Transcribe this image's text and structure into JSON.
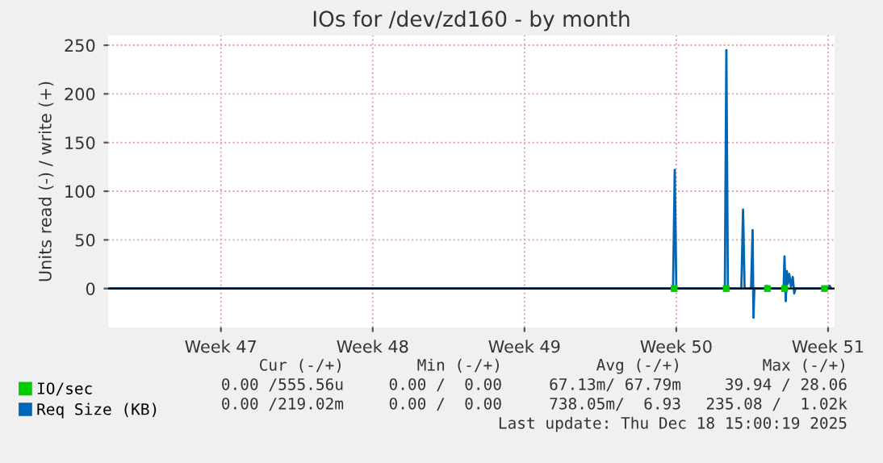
{
  "chart_data": {
    "type": "line",
    "title": "IOs for /dev/zd160 - by month",
    "ylabel": "Units read (-) / write (+)",
    "xlim": [
      "2025-11-11T19:12",
      "2025-12-15T07:12"
    ],
    "xticks": [
      {
        "value": "2025-11-17",
        "label": "Week 47"
      },
      {
        "value": "2025-11-24",
        "label": "Week 48"
      },
      {
        "value": "2025-12-01",
        "label": "Week 49"
      },
      {
        "value": "2025-12-08",
        "label": "Week 50"
      },
      {
        "value": "2025-12-15",
        "label": "Week 51"
      }
    ],
    "ylim": [
      -40,
      260
    ],
    "yticks": [
      0,
      50,
      100,
      150,
      200,
      250
    ],
    "grid": true,
    "legend": "bottom left",
    "line_style": "solid",
    "marker": "none",
    "ref_lines": [
      {
        "axis": "y",
        "value": 0,
        "color": "#000000"
      }
    ],
    "series": [
      {
        "name": "IO/sec",
        "type": "scatter",
        "marker": "square",
        "color": "#00cc00",
        "x": [
          "2025-12-07T21:36",
          "2025-12-10T07:12",
          "2025-12-12T04:48",
          "2025-12-13T00:00",
          "2025-12-14T20:00"
        ],
        "values": [
          0,
          0,
          0,
          0,
          0
        ]
      },
      {
        "name": "Req Size (KB)",
        "color": "#0066b3",
        "x": [
          "2025-11-11T19:12",
          "2025-12-07T20:24",
          "2025-12-07T22:20",
          "2025-12-08T00:00",
          "2025-12-10T05:46",
          "2025-12-10T07:26",
          "2025-12-10T09:07",
          "2025-12-11T00:00",
          "2025-12-11T01:55",
          "2025-12-11T03:36",
          "2025-12-11T10:48",
          "2025-12-11T12:29",
          "2025-12-11T13:26",
          "2025-12-11T14:24",
          "2025-12-12T02:24",
          "2025-12-12T04:05",
          "2025-12-12T05:46",
          "2025-12-12T22:48",
          "2025-12-12T23:46",
          "2025-12-13T01:12",
          "2025-12-13T02:24",
          "2025-12-13T03:36",
          "2025-12-13T05:02",
          "2025-12-13T06:58",
          "2025-12-13T08:53",
          "2025-12-13T10:34",
          "2025-12-13T12:00",
          "2025-12-15T00:00",
          "2025-12-15T01:41",
          "2025-12-15T03:22"
        ],
        "values": [
          0,
          0,
          122,
          0,
          0,
          245,
          0,
          0,
          81,
          0,
          0,
          60,
          -30,
          0,
          0,
          3,
          0,
          0,
          33,
          -13,
          18,
          5,
          15,
          2,
          12,
          -5,
          0,
          0,
          3,
          0
        ]
      }
    ],
    "annotations": [
      "Cur (-/+)",
      "Min (-/+)",
      "Avg (-/+)",
      "Max (-/+)",
      "0.00 /555.56u",
      "0.00 /  0.00",
      "67.13m/ 67.79m",
      "39.94 / 28.06",
      "0.00 /219.02m",
      "0.00 /  0.00",
      "738.05m/  6.93",
      "235.08 /  1.02k",
      "Last update: Thu Dec 18 15:00:19 2025"
    ]
  }
}
